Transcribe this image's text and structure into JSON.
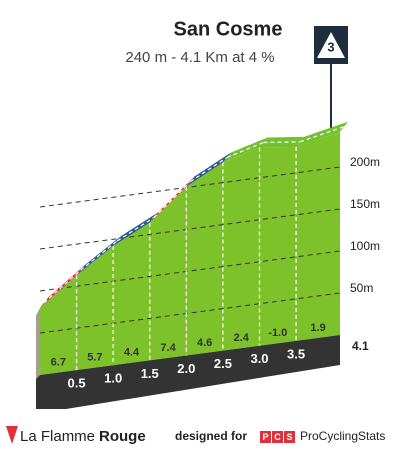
{
  "chart_data": {
    "type": "profile",
    "title": "San Cosme",
    "subtitle": "240 m - 4.1 Km at 4 %",
    "category": "3",
    "elevation": {
      "x": [
        0,
        0.5,
        1,
        1.5,
        2,
        2.5,
        3,
        3.5,
        4.1
      ],
      "values": [
        80,
        113,
        142,
        164,
        201,
        224,
        236,
        231,
        242
      ],
      "color": "#7dc22b"
    },
    "segments": {
      "values": [
        6.7,
        5.7,
        4.4,
        7.4,
        4.6,
        2.4,
        -1.0,
        1.9
      ],
      "value_labels": [
        "6.7",
        "5.7",
        "4.4",
        "7.4",
        "4.6",
        "2.4",
        "-1.0",
        "1.9"
      ],
      "colors": [
        "#e0303a",
        "#2a5b8c",
        "#2a5b8c",
        "#e0303a",
        "#2a5b8c",
        "#72c12e",
        "#72c12e",
        "#72c12e"
      ]
    },
    "xlim": [
      0,
      4.1
    ],
    "ylim": [
      0,
      250
    ],
    "xticks": [
      0.5,
      {
        "value": 1,
        "label": "1.0"
      },
      1.5,
      {
        "value": 2,
        "label": "2.0"
      },
      2.5,
      {
        "value": 3,
        "label": "3.0"
      },
      3.5
    ],
    "yticks": [
      {
        "value": 50,
        "label": "50m"
      },
      {
        "value": 100,
        "label": "100m"
      },
      {
        "value": 150,
        "label": "150m"
      },
      {
        "value": 200,
        "label": "200m"
      }
    ],
    "grid": true
  },
  "footer": {
    "brand_left": "La Flamme",
    "brand_right": "Rouge",
    "designed_for": "designed for",
    "pcs": [
      "P",
      "C",
      "S"
    ],
    "site": "ProCyclingStats"
  }
}
